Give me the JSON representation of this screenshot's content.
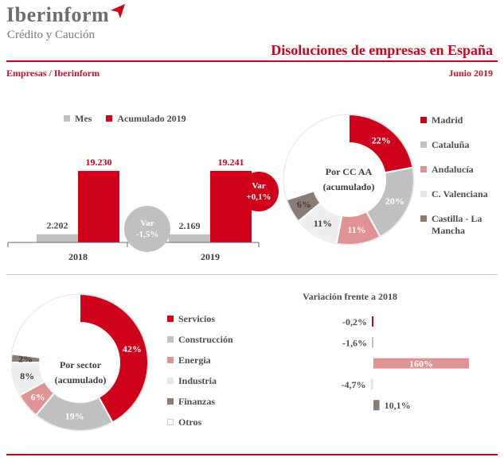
{
  "header": {
    "brand": "Iberinform",
    "brand_sub": "Crédito y Caución",
    "title": "Disoluciones de empresas en España",
    "source": "Empresas / Iberinform",
    "date": "Junio 2019"
  },
  "colors": {
    "red": "#d0021b",
    "grey": "#c0c0c0",
    "lightgrey": "#e6e6e6",
    "pink": "#e09393",
    "brown": "#8c7b73",
    "white": "#ffffff"
  },
  "bars": {
    "legend": [
      {
        "label": "Mes",
        "color": "#c0c0c0"
      },
      {
        "label": "Acumulado 2019",
        "color": "#d0021b"
      }
    ],
    "var_left": {
      "line1": "Var",
      "line2": "-1,5%"
    },
    "var_right": {
      "line1": "Var",
      "line2": "+0,1%"
    }
  },
  "regions": {
    "center_line1": "Por CC AA",
    "center_line2": "(acumulado)",
    "legend": [
      {
        "label": "Madrid",
        "color": "#d0021b"
      },
      {
        "label": "Cataluña",
        "color": "#c0c0c0"
      },
      {
        "label": "Andalucía",
        "color": "#e09393"
      },
      {
        "label": "C. Valenciana",
        "color": "#e6e6e6"
      },
      {
        "label": "Castilla - La",
        "label2": "Mancha",
        "color": "#8c7b73"
      }
    ]
  },
  "sectors": {
    "center_line1": "Por sector",
    "center_line2": "(acumulado)",
    "legend": [
      {
        "label": "Servicios",
        "color": "#d0021b"
      },
      {
        "label": "Construcción",
        "color": "#c0c0c0"
      },
      {
        "label": "Energia",
        "color": "#e09393"
      },
      {
        "label": "Industria",
        "color": "#e6e6e6"
      },
      {
        "label": "Finanzas",
        "color": "#8c7b73"
      },
      {
        "label": "Otros",
        "color": "#ffffff"
      }
    ],
    "variation_title": "Variación frente a 2018"
  },
  "chart_data": [
    {
      "type": "bar",
      "categories": [
        "2018",
        "2019"
      ],
      "series": [
        {
          "name": "Mes",
          "values": [
            2202,
            2169
          ],
          "labels": [
            "2.202",
            "2.169"
          ]
        },
        {
          "name": "Acumulado 2019",
          "values": [
            19230,
            19241
          ],
          "labels": [
            "19.230",
            "19.241"
          ]
        }
      ]
    },
    {
      "type": "pie",
      "categories": [
        "Madrid",
        "Cataluña",
        "Andalucía",
        "C. Valenciana",
        "Castilla - La Mancha",
        ""
      ],
      "values": [
        22,
        20,
        11,
        11,
        6,
        30
      ],
      "labels": [
        "22%",
        "20%",
        "11%",
        "11%",
        "6%",
        ""
      ],
      "colors": [
        "#d0021b",
        "#c0c0c0",
        "#e09393",
        "#eeeeee",
        "#8c7b73",
        "#ffffff"
      ]
    },
    {
      "type": "pie",
      "categories": [
        "Servicios",
        "Construcción",
        "Energia",
        "Industria",
        "Finanzas",
        "Otros"
      ],
      "values": [
        42,
        19,
        6,
        8,
        2,
        23
      ],
      "labels": [
        "42%",
        "19%",
        "6%",
        "8%",
        "2%",
        ""
      ],
      "colors": [
        "#d0021b",
        "#c0c0c0",
        "#e09393",
        "#eeeeee",
        "#8c7b73",
        "#ffffff"
      ]
    },
    {
      "type": "bar",
      "title": "Variación frente a 2018",
      "categories": [
        "Servicios",
        "Construcción",
        "Energia",
        "Industria",
        "Finanzas"
      ],
      "values": [
        -0.2,
        -1.6,
        160,
        -4.7,
        10.1
      ],
      "labels": [
        "-0,2%",
        "-1,6%",
        "160%",
        "-4,7%",
        "10,1%"
      ],
      "colors": [
        "#d0021b",
        "#c0c0c0",
        "#e09393",
        "#eeeeee",
        "#8c7b73"
      ]
    }
  ]
}
